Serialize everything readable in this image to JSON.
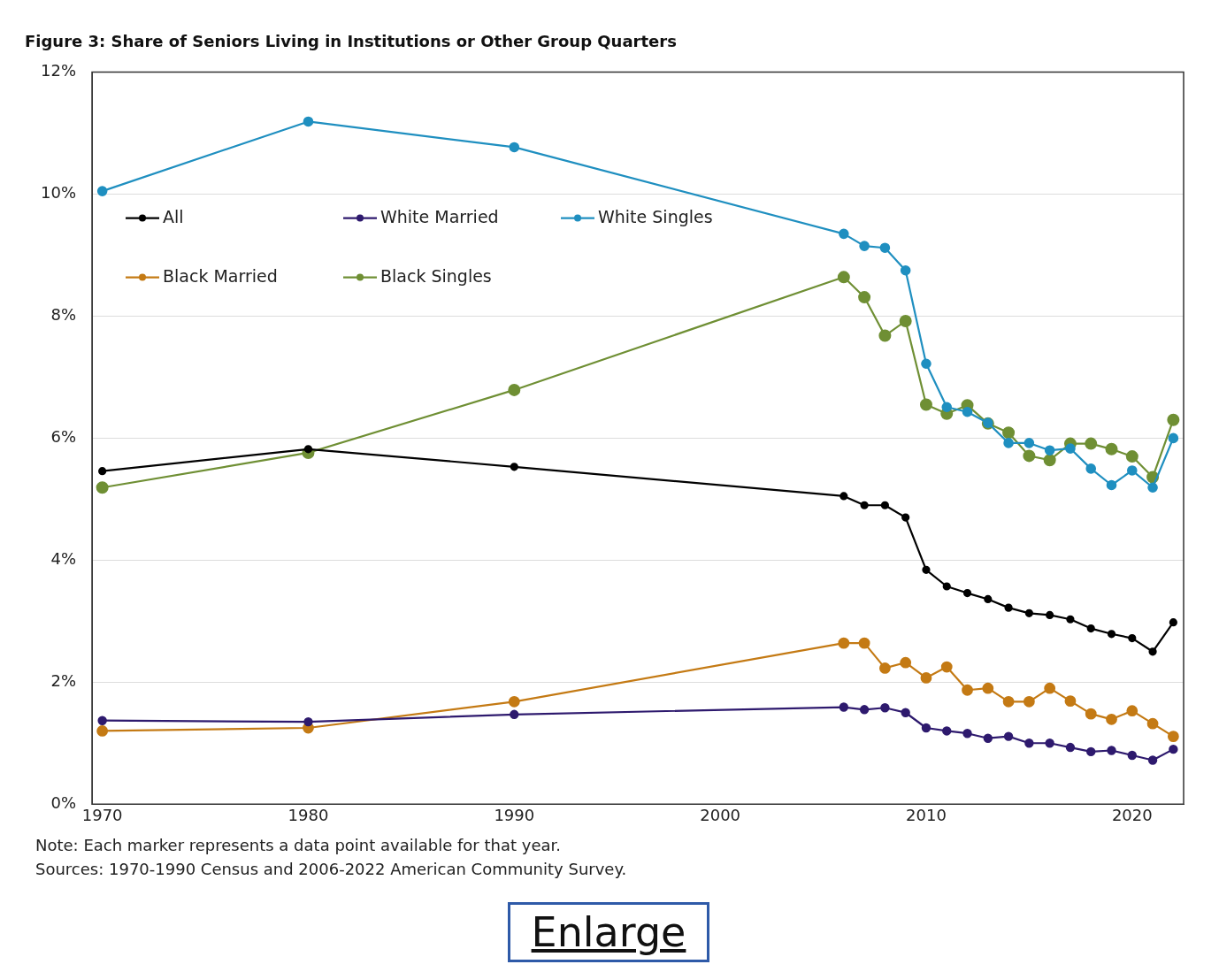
{
  "chart_data": {
    "type": "line",
    "title": "Figure 3: Share of Seniors Living in Institutions or Other Group Quarters",
    "x": [
      1970,
      1980,
      1990,
      2006,
      2007,
      2008,
      2009,
      2010,
      2011,
      2012,
      2013,
      2014,
      2015,
      2016,
      2017,
      2018,
      2019,
      2020,
      2021,
      2022
    ],
    "series": [
      {
        "name": "All",
        "color": "#000000",
        "values": [
          5.46,
          5.82,
          5.53,
          5.05,
          4.9,
          4.9,
          4.7,
          3.84,
          3.57,
          3.46,
          3.36,
          3.22,
          3.13,
          3.1,
          3.03,
          2.88,
          2.79,
          2.72,
          2.5,
          2.98
        ]
      },
      {
        "name": "White Married",
        "color": "#2e1a6e",
        "values": [
          1.37,
          1.35,
          1.47,
          1.59,
          1.55,
          1.58,
          1.5,
          1.25,
          1.2,
          1.16,
          1.08,
          1.11,
          1.0,
          1.0,
          0.93,
          0.86,
          0.88,
          0.8,
          0.72,
          0.9
        ]
      },
      {
        "name": "White Singles",
        "color": "#1f8fc0",
        "values": [
          10.05,
          11.19,
          10.77,
          9.35,
          9.15,
          9.12,
          8.75,
          7.22,
          6.51,
          6.43,
          6.25,
          5.92,
          5.92,
          5.8,
          5.83,
          5.5,
          5.23,
          5.47,
          5.19,
          6.0
        ]
      },
      {
        "name": "Black Married",
        "color": "#c47a14",
        "values": [
          1.2,
          1.25,
          1.68,
          2.64,
          2.64,
          2.23,
          2.32,
          2.07,
          2.25,
          1.87,
          1.9,
          1.68,
          1.68,
          1.9,
          1.69,
          1.48,
          1.39,
          1.53,
          1.32,
          1.11
        ]
      },
      {
        "name": "Black Singles",
        "color": "#6f8f34",
        "values": [
          5.19,
          5.76,
          6.79,
          8.64,
          8.31,
          7.68,
          7.92,
          6.55,
          6.4,
          6.54,
          6.24,
          6.09,
          5.71,
          5.64,
          5.91,
          5.91,
          5.82,
          5.7,
          5.36,
          6.3
        ]
      }
    ],
    "xlim": [
      1969.5,
      2022.5
    ],
    "xticks": [
      1970,
      1980,
      1990,
      2000,
      2010,
      2020
    ],
    "ylim": [
      0,
      12
    ],
    "yticks": [
      {
        "value": 0,
        "label": "0%"
      },
      {
        "value": 2,
        "label": "2%"
      },
      {
        "value": 4,
        "label": "4%"
      },
      {
        "value": 6,
        "label": "6%"
      },
      {
        "value": 8,
        "label": "8%"
      },
      {
        "value": 10,
        "label": "10%"
      },
      {
        "value": 12,
        "label": "12%"
      }
    ],
    "grid": "y",
    "legend": "top left",
    "marker": "circle",
    "line_style": "solid",
    "annotations": [
      "Note: Each marker represents a data point available for that year.",
      "Sources: 1970-1990  Census and 2006-2022  American Community Survey.",
      "Enlarge"
    ]
  }
}
